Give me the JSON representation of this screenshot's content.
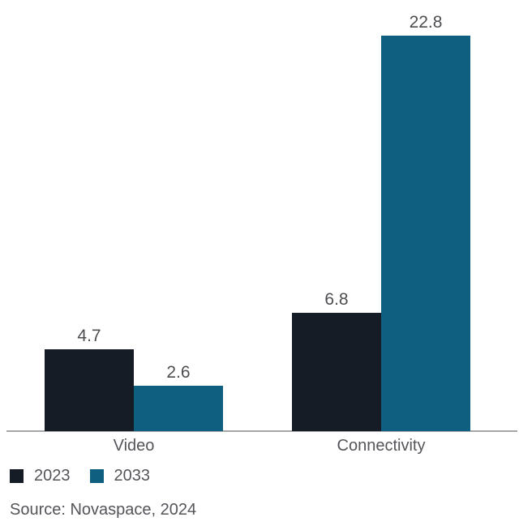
{
  "chart_data": {
    "type": "bar",
    "categories": [
      "Video",
      "Connectivity"
    ],
    "series": [
      {
        "name": "2023",
        "color": "#151c26",
        "values": [
          4.7,
          6.8
        ]
      },
      {
        "name": "2033",
        "color": "#0f5f81",
        "values": [
          2.6,
          22.8
        ]
      }
    ],
    "title": "",
    "xlabel": "",
    "ylabel": "",
    "ylim": [
      0,
      24
    ],
    "grid": false,
    "axis_line_color": "#a5a8aa",
    "value_label_color": "#4c4d50",
    "value_labels_shown": true,
    "legend_position": "bottom-left"
  },
  "legend": {
    "items": [
      {
        "label": "2023",
        "color": "#151c26"
      },
      {
        "label": "2033",
        "color": "#0f5f81"
      }
    ]
  },
  "source": {
    "text": "Source: Novaspace, 2024"
  }
}
